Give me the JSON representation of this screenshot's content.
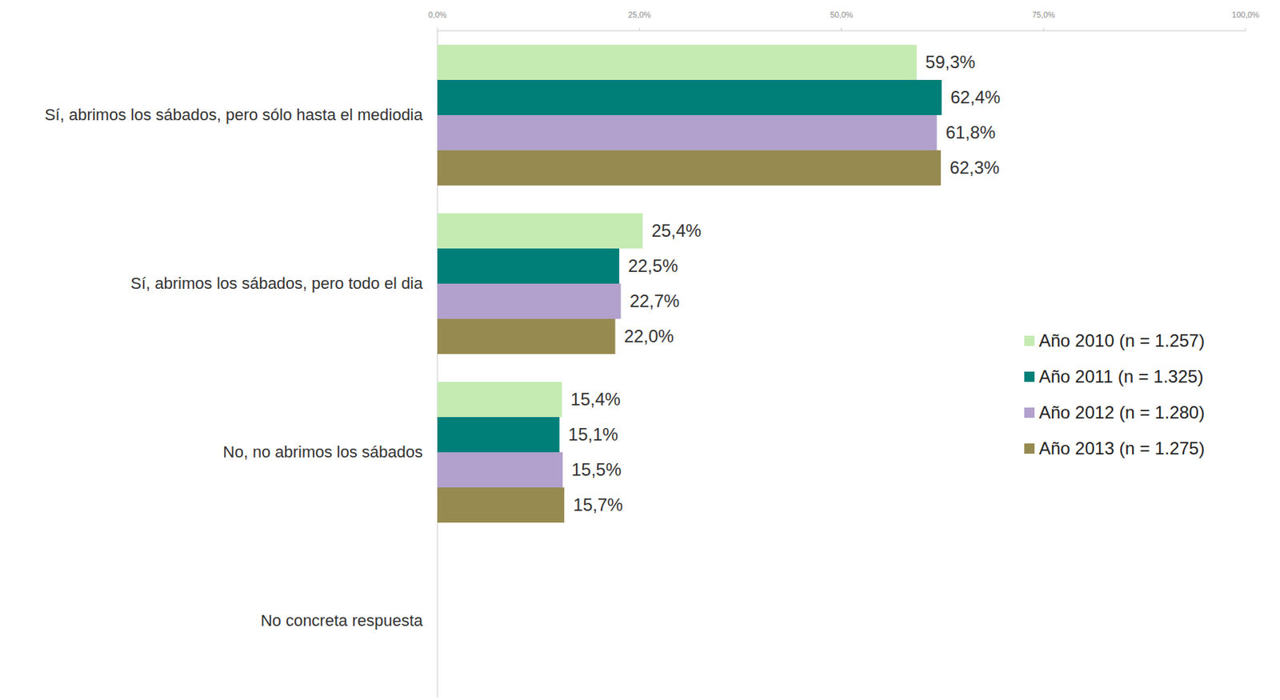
{
  "chart_data": {
    "type": "bar",
    "orientation": "horizontal",
    "categories": [
      "Sí, abrimos los sábados, pero sólo hasta el mediodia",
      "Sí, abrimos los sábados, pero todo el dia",
      "No, no abrimos los sábados",
      "No concreta respuesta"
    ],
    "series": [
      {
        "name": "Año 2010 (n = 1.257)",
        "color": "#c5ebb3",
        "values": [
          59.3,
          25.4,
          15.4,
          null
        ],
        "value_labels": [
          "59,3%",
          "25,4%",
          "15,4%",
          null
        ]
      },
      {
        "name": "Año 2011 (n = 1.325)",
        "color": "#007f79",
        "values": [
          62.4,
          22.5,
          15.1,
          null
        ],
        "value_labels": [
          "62,4%",
          "22,5%",
          "15,1%",
          null
        ]
      },
      {
        "name": "Año 2012 (n = 1.280)",
        "color": "#b1a1cc",
        "values": [
          61.8,
          22.7,
          15.5,
          null
        ],
        "value_labels": [
          "61,8%",
          "22,7%",
          "15,5%",
          null
        ]
      },
      {
        "name": "Año 2013 (n = 1.275)",
        "color": "#978a51",
        "values": [
          62.3,
          22.0,
          15.7,
          null
        ],
        "value_labels": [
          "62,3%",
          "22,0%",
          "15,7%",
          null
        ]
      }
    ],
    "xlim": [
      0,
      100
    ],
    "xticks": [
      {
        "value": 0,
        "label": "0,0%"
      },
      {
        "value": 25,
        "label": "25,0%"
      },
      {
        "value": 50,
        "label": "50,0%"
      },
      {
        "value": 75,
        "label": "75,0%"
      },
      {
        "value": 100,
        "label": "100,0%"
      }
    ],
    "grid": false,
    "data_labels": true,
    "legend": "right"
  }
}
